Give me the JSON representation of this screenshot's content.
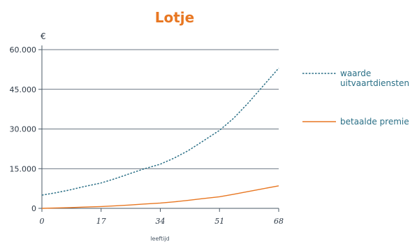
{
  "chart_data": {
    "type": "line",
    "title": "Lotje",
    "ylabel": "€",
    "xlabel": "leeftijd",
    "x_ticks": [
      0,
      17,
      34,
      51,
      68
    ],
    "x_tick_labels": [
      "0",
      "17",
      "34",
      "51",
      "68"
    ],
    "y_ticks": [
      0,
      15000,
      30000,
      45000,
      60000
    ],
    "y_tick_labels": [
      "0",
      "15.000",
      "30.000",
      "45.000",
      "60.000"
    ],
    "xlim": [
      0,
      68
    ],
    "ylim": [
      0,
      60000
    ],
    "grid": "horizontal",
    "legend_position": "right",
    "x": [
      0,
      4,
      8,
      12,
      17,
      21,
      25,
      29,
      34,
      38,
      42,
      46,
      51,
      55,
      59,
      63,
      68
    ],
    "series": [
      {
        "name": "waarde uitvaartdiensten",
        "name_lines": [
          "waarde",
          "uitvaartdiensten"
        ],
        "style": "dotted",
        "color": "#2a6f86",
        "values": [
          5000,
          5900,
          6950,
          8200,
          9600,
          11200,
          13000,
          14800,
          16700,
          19000,
          21800,
          25200,
          29500,
          34000,
          39500,
          45500,
          53000
        ]
      },
      {
        "name": "betaalde premie",
        "style": "solid",
        "color": "#e87722",
        "values": [
          0,
          150,
          300,
          480,
          700,
          950,
          1250,
          1600,
          2000,
          2450,
          3000,
          3650,
          4400,
          5300,
          6300,
          7300,
          8500
        ]
      }
    ],
    "title_color": "#e87722",
    "axis_color": "#4a5866",
    "grid_color": "#3a4a5a"
  }
}
